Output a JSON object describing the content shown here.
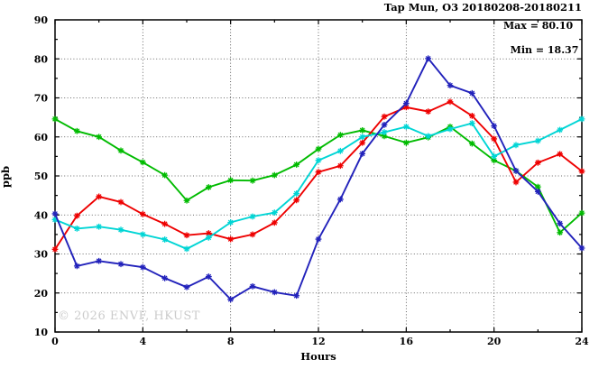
{
  "chart_data": {
    "type": "line",
    "title": "Tap Mun, O3 20180208-20180211",
    "xlabel": "Hours",
    "ylabel": "ppb",
    "xlim": [
      0,
      24
    ],
    "ylim": [
      10,
      90
    ],
    "xticks": [
      0,
      4,
      8,
      12,
      16,
      20,
      24
    ],
    "xticks_minor": [
      2,
      6,
      10,
      14,
      18,
      22
    ],
    "yticks": [
      10,
      20,
      30,
      40,
      50,
      60,
      70,
      80,
      90
    ],
    "yticks_minor": [
      15,
      25,
      35,
      45,
      55,
      65,
      75,
      85
    ],
    "grid": "dotted-at-major-ticks",
    "legend_position": "none",
    "marker": "asterisk",
    "x": [
      0,
      1,
      2,
      3,
      4,
      5,
      6,
      7,
      8,
      9,
      10,
      11,
      12,
      13,
      14,
      15,
      16,
      17,
      18,
      19,
      20,
      21,
      22,
      23,
      24
    ],
    "series": [
      {
        "name": "green",
        "color": "#00bb00",
        "values": [
          64.6,
          61.5,
          60.0,
          56.5,
          53.5,
          50.2,
          43.7,
          47.1,
          48.9,
          48.8,
          50.2,
          52.9,
          56.9,
          60.5,
          61.7,
          60.2,
          58.5,
          59.9,
          62.6,
          58.3,
          54.0,
          51.3,
          47.2,
          35.5,
          40.5
        ]
      },
      {
        "name": "red",
        "color": "#ee0000",
        "values": [
          31.2,
          39.8,
          44.7,
          43.3,
          40.2,
          37.7,
          34.8,
          35.3,
          33.8,
          35.0,
          38.0,
          43.8,
          51.0,
          52.6,
          58.5,
          65.2,
          67.6,
          66.5,
          69.0,
          65.4,
          59.5,
          48.4,
          53.4,
          55.6,
          51.2
        ]
      },
      {
        "name": "cyan",
        "color": "#00d5d5",
        "values": [
          38.8,
          36.5,
          37.0,
          36.2,
          35.0,
          33.7,
          31.3,
          34.2,
          38.1,
          39.6,
          40.6,
          45.5,
          54.0,
          56.4,
          60.0,
          61.2,
          62.6,
          60.2,
          62.0,
          63.5,
          55.0,
          57.9,
          59.0,
          61.8,
          64.6
        ]
      },
      {
        "name": "blue",
        "color": "#2222bb",
        "values": [
          40.3,
          26.9,
          28.2,
          27.4,
          26.6,
          23.8,
          21.5,
          24.2,
          18.37,
          21.7,
          20.2,
          19.3,
          33.8,
          44.0,
          55.7,
          63.1,
          68.6,
          80.1,
          73.2,
          71.2,
          62.8,
          51.3,
          46.0,
          37.8,
          31.5
        ]
      }
    ],
    "annotations": {
      "max_label": "Max = 80.10",
      "min_label": "Min = 18.37"
    },
    "watermark": "© 2026 ENVF, HKUST"
  }
}
